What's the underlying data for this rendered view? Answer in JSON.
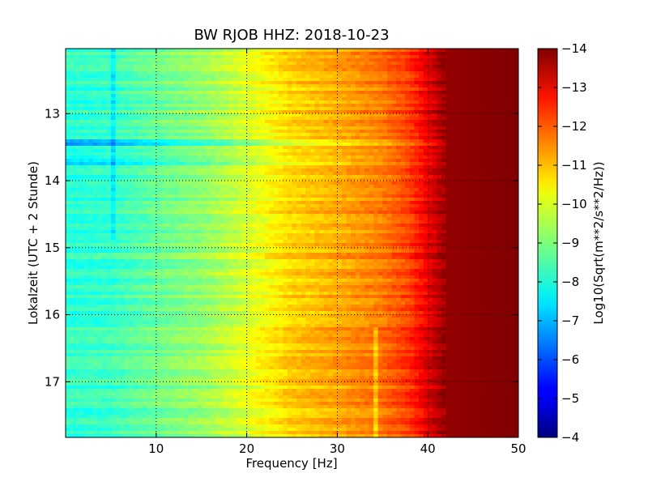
{
  "chart_data": {
    "type": "heatmap",
    "title": "BW RJOB HHZ: 2018-10-23",
    "xlabel": "Frequency [Hz]",
    "ylabel": "Lokalzeit (UTC + 2 Stunde)",
    "xlim": [
      0,
      50
    ],
    "ylim": [
      12.03,
      17.83
    ],
    "y_inverted": true,
    "x_ticks": [
      10,
      20,
      30,
      40,
      50
    ],
    "x_tick_labels": [
      "10",
      "20",
      "30",
      "40",
      "50"
    ],
    "y_ticks": [
      13,
      14,
      15,
      16,
      17
    ],
    "y_tick_labels": [
      "13",
      "14",
      "15",
      "16",
      "17"
    ],
    "grid": true,
    "colormap": "jet",
    "colorbar": {
      "label": "Log10(Sqrt(m**2/s**2/Hz))",
      "range": [
        -14,
        -4
      ],
      "ticks": [
        -4,
        -5,
        -6,
        -7,
        -8,
        -9,
        -10,
        -11,
        -12,
        -13,
        -14
      ],
      "tick_labels": [
        "−4",
        "−5",
        "−6",
        "−7",
        "−8",
        "−9",
        "−10",
        "−11",
        "−12",
        "−13",
        "−14"
      ]
    },
    "spectrum_profile": [
      {
        "freq": 0.5,
        "value": -8.2
      },
      {
        "freq": 5,
        "value": -8.3
      },
      {
        "freq": 10,
        "value": -8.8
      },
      {
        "freq": 15,
        "value": -9.2
      },
      {
        "freq": 20,
        "value": -9.9
      },
      {
        "freq": 25,
        "value": -10.7
      },
      {
        "freq": 30,
        "value": -11.1
      },
      {
        "freq": 35,
        "value": -11.6
      },
      {
        "freq": 38,
        "value": -12.2
      },
      {
        "freq": 40,
        "value": -13.0
      },
      {
        "freq": 42,
        "value": -13.8
      },
      {
        "freq": 50,
        "value": -14.0
      }
    ],
    "annotations": [
      {
        "type": "noise-band",
        "time": 13.42,
        "value_offset": 1.2
      },
      {
        "type": "noise-band",
        "time": 13.72,
        "value_offset": 0.9
      },
      {
        "type": "spectral-line",
        "freq": 5.2,
        "time_range": [
          12.03,
          14.9
        ],
        "value_offset": 0.7
      },
      {
        "type": "spectral-line",
        "freq": 34.2,
        "time_range": [
          16.2,
          17.83
        ],
        "value_offset": 0.8
      }
    ]
  }
}
